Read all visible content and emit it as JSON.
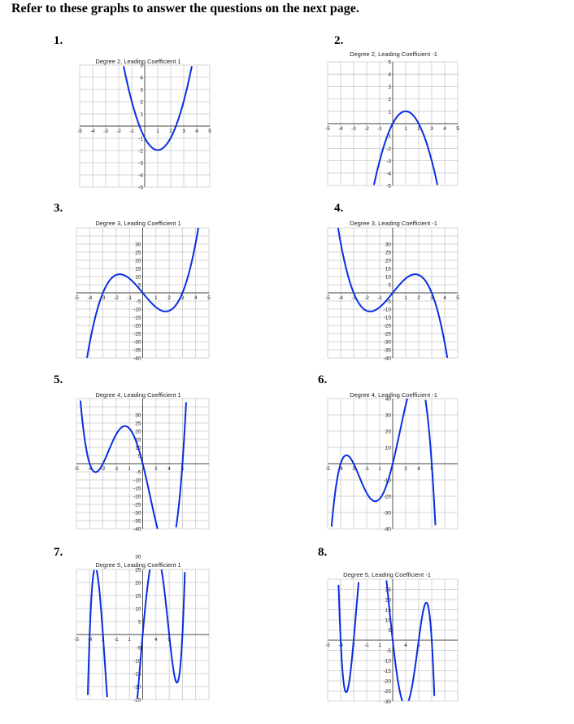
{
  "heading": "Refer to these graphs to answer the questions on the next page.",
  "graphs": [
    {
      "number": "1.",
      "title": "Degree 2, Leading Coefficient 1",
      "degree": 2,
      "lead": 1,
      "roots": [
        -0.4,
        2.4
      ],
      "ymax": 5,
      "ystep": 1,
      "xlabels": [
        "-5",
        "-4",
        "-3",
        "-2",
        "-1",
        "1",
        "2",
        "3",
        "4",
        "5"
      ],
      "ylabels": [
        "5",
        "4",
        "3",
        "2",
        "1",
        "-1",
        "-2",
        "-3",
        "-4",
        "-5"
      ]
    },
    {
      "number": "2.",
      "title": "Degree 2, Leading Coefficient -1",
      "degree": 2,
      "lead": -1,
      "roots": [
        0,
        2
      ],
      "ymax": 5,
      "ystep": 1,
      "xlabels": [
        "-5",
        "-4",
        "-3",
        "-2",
        "-1",
        "1",
        "2",
        "3",
        "4",
        "5"
      ],
      "ylabels": [
        "5",
        "4",
        "3",
        "2",
        "1",
        "-1",
        "-2",
        "-3",
        "-4",
        "-5"
      ]
    },
    {
      "number": "3.",
      "title": "Degree 3, Leading Coefficient 1",
      "degree": 3,
      "lead": 1,
      "roots": [
        -3,
        0,
        3
      ],
      "ymax": 40,
      "ystep": 5,
      "xlabels": [
        "-5",
        "-4",
        "-3",
        "-2",
        "-1",
        "1",
        "2",
        "3",
        "4",
        "5"
      ],
      "ylabels": [
        "30",
        "25",
        "20",
        "15",
        "10",
        "5",
        "-5",
        "-10",
        "-15",
        "-20",
        "-25",
        "-30",
        "-35",
        "-40"
      ]
    },
    {
      "number": "4.",
      "title": "Degree 3, Leading Coefficient -1",
      "degree": 3,
      "lead": -1,
      "roots": [
        -3,
        0,
        3
      ],
      "ymax": 40,
      "ystep": 5,
      "xlabels": [
        "-5",
        "-4",
        "-3",
        "-2",
        "-1",
        "1",
        "2",
        "3",
        "4",
        "5"
      ],
      "ylabels": [
        "30",
        "25",
        "20",
        "15",
        "10",
        "5",
        "-5",
        "-10",
        "-15",
        "-20",
        "-25",
        "-30",
        "-35",
        "-40"
      ]
    },
    {
      "number": "5.",
      "title": "Degree 4, Leading Coefficient 1",
      "degree": 4,
      "lead": 1,
      "roots": [
        -4,
        -3,
        0,
        3
      ],
      "ymax": 40,
      "ystep": 5,
      "xlabels": [
        "-5",
        "-4",
        "-2",
        "-1",
        "1",
        "2",
        "4",
        "5"
      ],
      "ylabels": [
        "30",
        "25",
        "20",
        "15",
        "10",
        "5",
        "-5",
        "-10",
        "-15",
        "-20",
        "-25",
        "-30",
        "-35",
        "-40"
      ]
    },
    {
      "number": "6.",
      "title": "Degree 4, Leading Coefficient -1",
      "degree": 4,
      "lead": -1,
      "roots": [
        -4,
        -3,
        0,
        3
      ],
      "ymax": 40,
      "ystep": 10,
      "xlabels": [
        "-5",
        "-4",
        "3",
        "-1",
        "1",
        "2",
        "4",
        "5"
      ],
      "ylabels": [
        "40",
        "30",
        "20",
        "10",
        "-10",
        "-20",
        "-30",
        "-40"
      ]
    },
    {
      "number": "7.",
      "title": "Degree 5, Leading Coefficient 1",
      "degree": 5,
      "lead": 1,
      "roots": [
        -4,
        -3,
        0,
        2,
        3
      ],
      "ymax": 25,
      "ystep": 5,
      "xlabels": [
        "-5",
        "-4",
        "3",
        "-1",
        "1",
        "4",
        "5"
      ],
      "ylabels": [
        "30",
        "25",
        "20",
        "15",
        "10",
        "5",
        "-5",
        "-10",
        "-15",
        "-20",
        "-25"
      ]
    },
    {
      "number": "8.",
      "title": "Degree 5, Leading Coefficient -1",
      "degree": 5,
      "lead": -1,
      "roots": [
        -4,
        -3,
        0,
        2,
        3
      ],
      "ymax": 30,
      "ystep": 5,
      "xlabels": [
        "-5",
        "-4",
        "2",
        "-1",
        "1",
        "4",
        "5"
      ],
      "ylabels": [
        "25",
        "20",
        "15",
        "10",
        "5",
        "-5",
        "-10",
        "-15",
        "-20",
        "-25",
        "-30"
      ]
    }
  ]
}
